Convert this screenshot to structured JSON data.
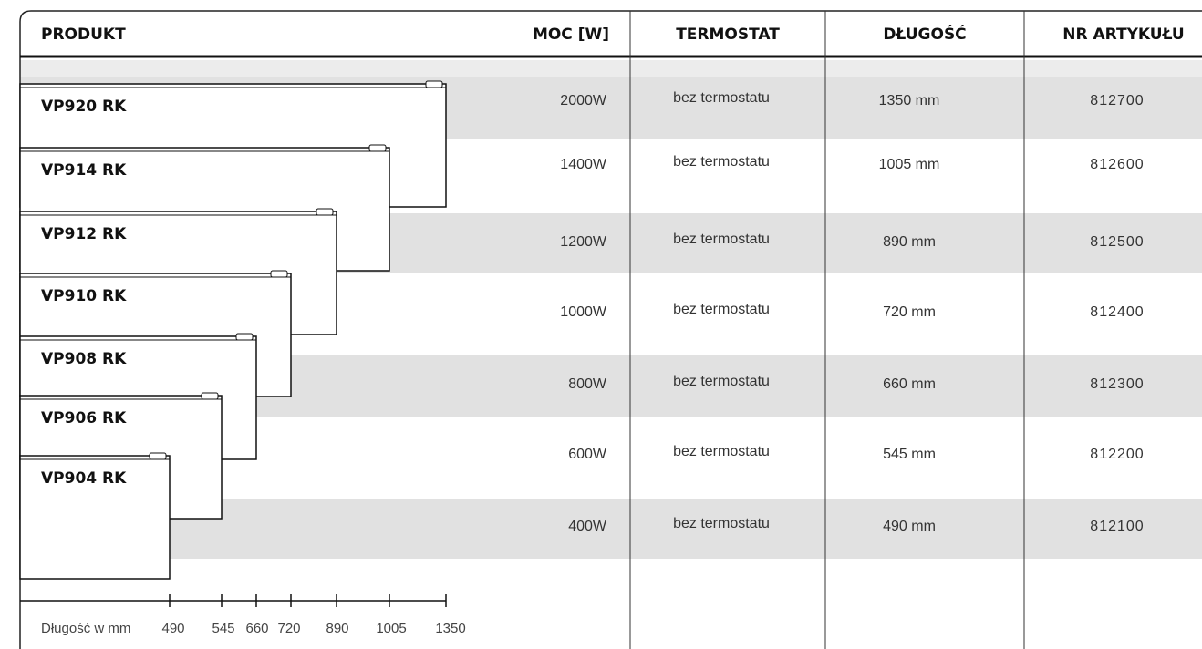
{
  "header": {
    "columns": [
      "PRODUKT",
      "MOC [W]",
      "TERMOSTAT",
      "DŁUGOŚĆ",
      "NR ARTYKUŁU"
    ]
  },
  "rows": [
    {
      "product": "VP920 RK",
      "power": "2000W",
      "thermostat": "bez termostatu",
      "length": "1350 mm",
      "article": "812700"
    },
    {
      "product": "VP914 RK",
      "power": "1400W",
      "thermostat": "bez termostatu",
      "length": "1005 mm",
      "article": "812600"
    },
    {
      "product": "VP912 RK",
      "power": "1200W",
      "thermostat": "bez termostatu",
      "length": "890 mm",
      "article": "812500"
    },
    {
      "product": "VP910 RK",
      "power": "1000W",
      "thermostat": "bez termostatu",
      "length": "720 mm",
      "article": "812400"
    },
    {
      "product": "VP908 RK",
      "power": "800W",
      "thermostat": "bez termostatu",
      "length": "660 mm",
      "article": "812300"
    },
    {
      "product": "VP906 RK",
      "power": "600W",
      "thermostat": "bez termostatu",
      "length": "545 mm",
      "article": "812200"
    },
    {
      "product": "VP904 RK",
      "power": "400W",
      "thermostat": "bez termostatu",
      "length": "490 mm",
      "article": "812100"
    }
  ],
  "scale": {
    "label": "Długość w mm",
    "ticks": [
      490,
      545,
      660,
      720,
      890,
      1005,
      1350
    ]
  }
}
